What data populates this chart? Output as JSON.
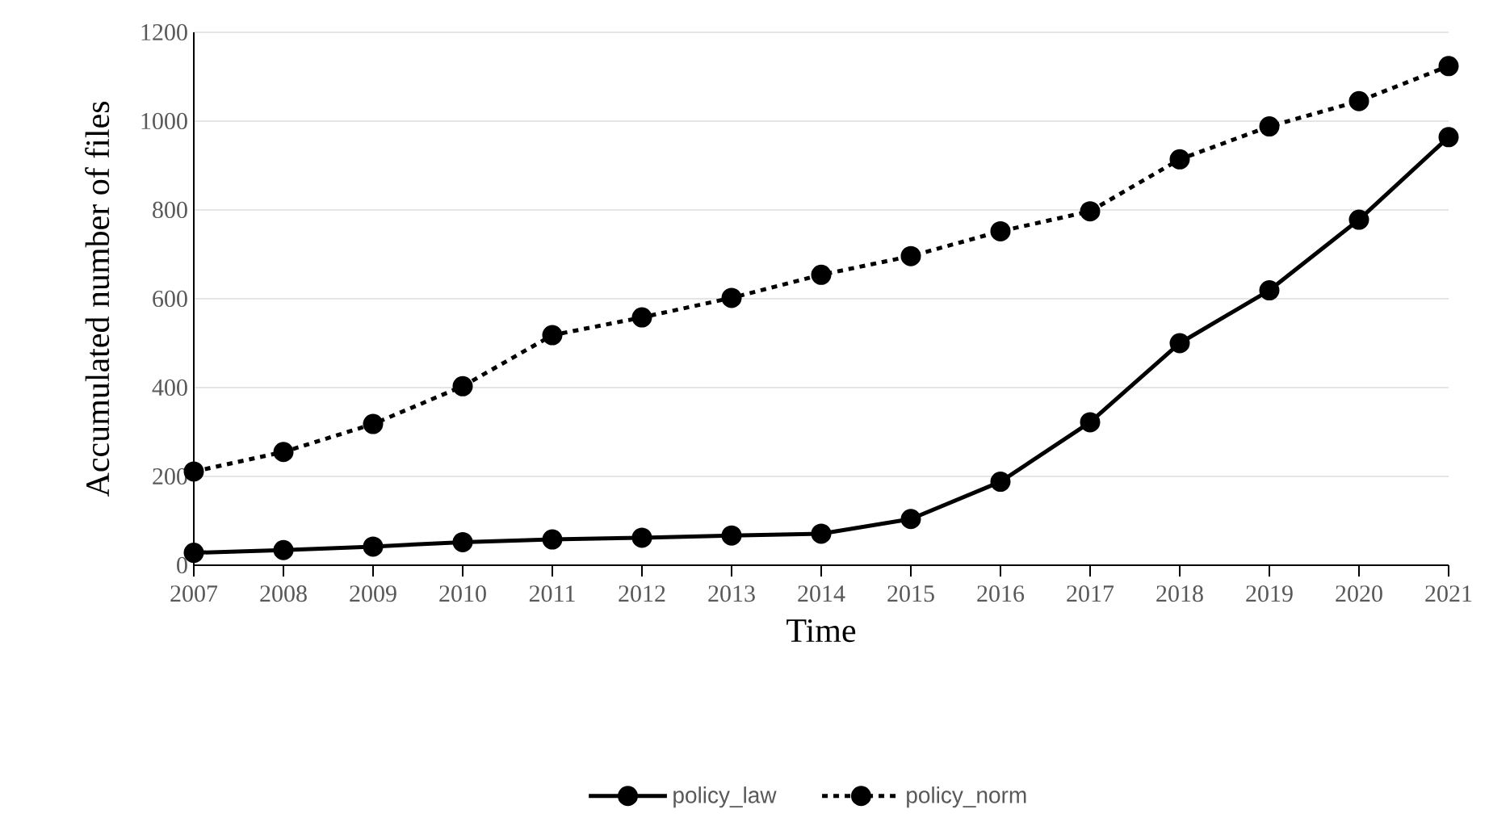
{
  "chart_data": {
    "type": "line",
    "xlabel": "Time",
    "ylabel": "Accumulated number of files",
    "categories": [
      "2007",
      "2008",
      "2009",
      "2010",
      "2011",
      "2012",
      "2013",
      "2014",
      "2015",
      "2016",
      "2017",
      "2018",
      "2019",
      "2020",
      "2021"
    ],
    "series": [
      {
        "name": "policy_law",
        "color": "#000000",
        "line_style": "solid",
        "values": [
          28,
          34,
          42,
          52,
          58,
          62,
          67,
          71,
          104,
          188,
          322,
          500,
          619,
          778,
          964
        ]
      },
      {
        "name": "policy_norm",
        "color": "#000000",
        "line_style": "dotted",
        "values": [
          211,
          255,
          318,
          403,
          518,
          558,
          602,
          654,
          696,
          752,
          797,
          914,
          988,
          1045,
          1124
        ]
      }
    ],
    "ylim": [
      0,
      1200
    ],
    "yticks": [
      0,
      200,
      400,
      600,
      800,
      1000,
      1200
    ],
    "grid": "y",
    "legend": "bottom",
    "marker": "circle"
  }
}
